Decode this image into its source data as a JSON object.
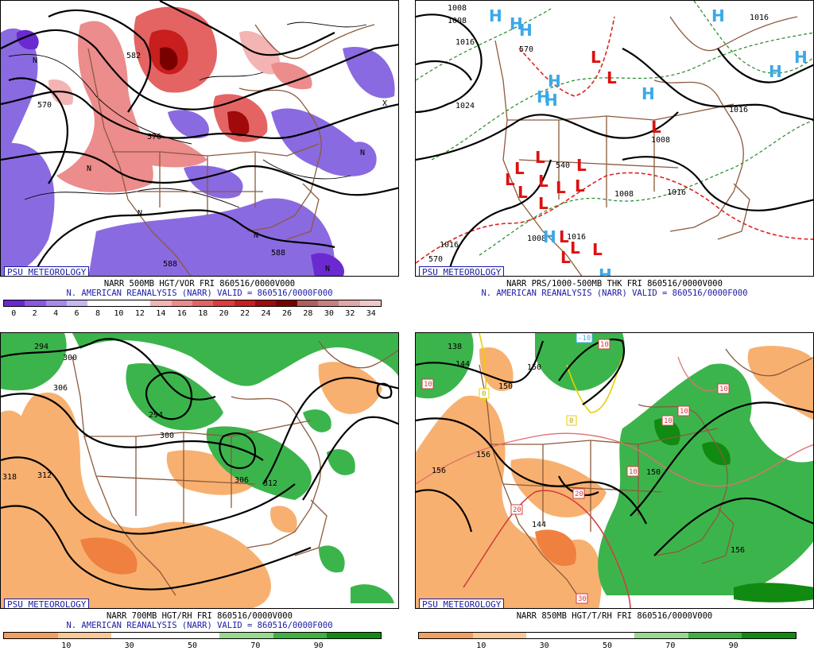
{
  "panels": {
    "tl": {
      "badge": "PSU METEOROLOGY",
      "caption1": "NARR 500MB HGT/VOR FRI 860516/0000V000",
      "caption2": "N. AMERICAN REANALYSIS (NARR) VALID = 860516/0000F000",
      "scale_ticks": [
        "0",
        "2",
        "4",
        "6",
        "8",
        "10",
        "12",
        "14",
        "16",
        "18",
        "20",
        "22",
        "24",
        "26",
        "28",
        "30",
        "32",
        "34"
      ],
      "scale_colors": [
        "#6a2ad0",
        "#8a5ae0",
        "#a88ae8",
        "#c8b8f0",
        "#ffffff",
        "#ffffff",
        "#ffffff",
        "#f4b4b4",
        "#ec8c8c",
        "#e46464",
        "#dc3c3c",
        "#c81e1e",
        "#a00a0a",
        "#7a0000",
        "#b06060",
        "#c88080",
        "#e0a8a8",
        "#f0c8c8"
      ],
      "contour_labels": [
        "570",
        "576",
        "582",
        "588",
        "588"
      ],
      "vort_markers": [
        "N",
        "N",
        "N",
        "N",
        "N",
        "N",
        "X"
      ]
    },
    "tr": {
      "badge": "PSU METEOROLOGY",
      "caption1": "NARR PRS/1000-500MB THK FRI 860516/0000V000",
      "caption2": "N. AMERICAN REANALYSIS (NARR) VALID = 860516/0000F000",
      "pressure_labels": [
        "1008",
        "1016",
        "1024",
        "1016",
        "1008",
        "1016",
        "1008",
        "1008",
        "1016",
        "1016",
        "1016",
        "1008"
      ],
      "thickness_labels": [
        "540",
        "570",
        "570"
      ],
      "highs": [
        "H",
        "H",
        "H",
        "H",
        "H",
        "H",
        "H",
        "H",
        "H",
        "H",
        "H",
        "H"
      ],
      "lows": [
        "L",
        "L",
        "L",
        "L",
        "L",
        "L",
        "L",
        "L",
        "L",
        "L",
        "L",
        "L",
        "L",
        "L",
        "L",
        "L"
      ]
    },
    "bl": {
      "badge": "PSU METEOROLOGY",
      "caption1": "NARR 700MB HGT/RH FRI 860516/0000V000",
      "caption2": "N. AMERICAN REANALYSIS (NARR) VALID = 860516/0000F000",
      "scale_ticks": [
        "10",
        "30",
        "50",
        "70",
        "90"
      ],
      "scale_colors": [
        "#f0a060",
        "#f8c898",
        "#ffffff",
        "#ffffff",
        "#9ad890",
        "#40b040",
        "#108a10"
      ],
      "contour_labels": [
        "294",
        "300",
        "306",
        "294",
        "300",
        "306",
        "312",
        "318",
        "312"
      ]
    },
    "br": {
      "badge": "PSU METEOROLOGY",
      "caption1": "NARR 850MB HGT/T/RH FRI 860516/0000V000",
      "scale_ticks": [
        "10",
        "30",
        "50",
        "70",
        "90"
      ],
      "scale_colors": [
        "#f0a060",
        "#f8c898",
        "#ffffff",
        "#ffffff",
        "#9ad890",
        "#40b040",
        "#108a10"
      ],
      "contour_labels": [
        "138",
        "144",
        "150",
        "150",
        "156",
        "144",
        "156",
        "150",
        "156"
      ],
      "temp_labels": [
        "10",
        "0",
        "0",
        "10",
        "10",
        "10",
        "10",
        "10",
        "20",
        "20",
        "30",
        "-10"
      ]
    }
  }
}
